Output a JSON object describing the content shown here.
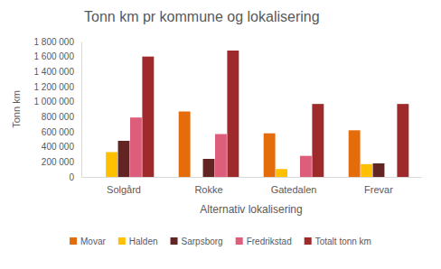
{
  "chart_data": {
    "type": "bar",
    "title": "Tonn km pr kommune og lokalisering",
    "x_label": "Alternativ lokalisering",
    "y_label": "Tonn km",
    "categories": [
      "Solgård",
      "Rokke",
      "Gatedalen",
      "Frevar"
    ],
    "series": [
      {
        "name": "Movar",
        "color": "#E46C0A",
        "values": [
          0,
          870000,
          580000,
          620000
        ]
      },
      {
        "name": "Halden",
        "color": "#FFC000",
        "values": [
          330000,
          0,
          105000,
          170000
        ]
      },
      {
        "name": "Sarpsborg",
        "color": "#632523",
        "values": [
          480000,
          240000,
          0,
          180000
        ]
      },
      {
        "name": "Fredrikstad",
        "color": "#DC5E7A",
        "values": [
          790000,
          570000,
          280000,
          0
        ]
      },
      {
        "name": "Totalt tonn km",
        "color": "#9E2A2B",
        "values": [
          1600000,
          1680000,
          970000,
          970000
        ]
      }
    ],
    "ylim": [
      0,
      1800000
    ],
    "yticks": [
      0,
      {
        "value": 200000,
        "label": "200 000"
      },
      {
        "value": 400000,
        "label": "400 000"
      },
      {
        "value": 600000,
        "label": "600 000"
      },
      {
        "value": 800000,
        "label": "800 000"
      },
      {
        "value": 1000000,
        "label": "1 000 000"
      },
      {
        "value": 1200000,
        "label": "1 200 000"
      },
      {
        "value": 1400000,
        "label": "1 400 000"
      },
      {
        "value": 1600000,
        "label": "1 600 000"
      },
      {
        "value": 1800000,
        "label": "1 800 000"
      }
    ],
    "grid": false,
    "legend": "bottom"
  }
}
